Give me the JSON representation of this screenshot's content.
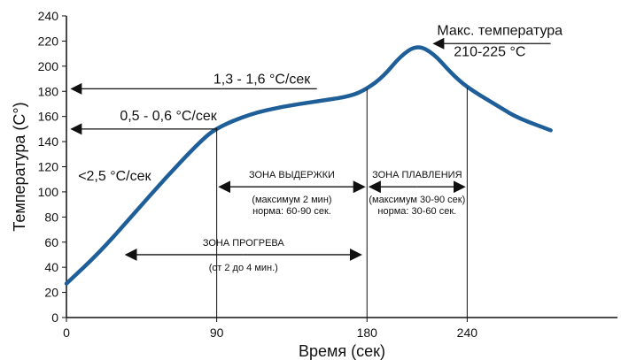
{
  "chart_data": {
    "type": "line",
    "title": "",
    "xlabel": "Время (сек)",
    "ylabel": "Температура (С°)",
    "xlim": [
      0,
      330
    ],
    "ylim": [
      0,
      240
    ],
    "x_ticks": [
      0,
      90,
      180,
      240
    ],
    "y_ticks": [
      0,
      20,
      40,
      60,
      80,
      100,
      120,
      140,
      160,
      180,
      200,
      220,
      240
    ],
    "grid": false,
    "series": [
      {
        "name": "",
        "color": "#1f5f99",
        "points": [
          [
            0,
            27
          ],
          [
            20,
            52
          ],
          [
            40,
            82
          ],
          [
            60,
            112
          ],
          [
            80,
            140
          ],
          [
            90,
            151
          ],
          [
            110,
            162
          ],
          [
            130,
            168
          ],
          [
            150,
            172
          ],
          [
            170,
            176
          ],
          [
            180,
            182
          ],
          [
            190,
            192
          ],
          [
            200,
            208
          ],
          [
            210,
            217
          ],
          [
            220,
            210
          ],
          [
            230,
            195
          ],
          [
            240,
            183
          ],
          [
            260,
            167
          ],
          [
            270,
            159
          ],
          [
            290,
            149
          ]
        ]
      }
    ],
    "verticals": [
      90,
      180,
      240
    ],
    "annotations": {
      "rate_1": {
        "text": "<2,5 °С/сек",
        "x": 7,
        "y": 109
      },
      "rate_2": {
        "text": "0,5 - 0,6 °С/сек",
        "x": 32,
        "y": 157
      },
      "rate_3": {
        "text": "1,3 - 1,6 °С/сек",
        "x": 88,
        "y": 186
      },
      "max_temp_label": {
        "text": "Макс. температура",
        "x": 222,
        "y": 225
      },
      "max_temp_range": {
        "text": "210-225 °С",
        "x": 232,
        "y": 208
      },
      "soak_zone": {
        "title": "ЗОНА ВЫДЕРЖКИ",
        "line1": "(максимум 2 мин)",
        "line2": "норма: 60-90 сек.",
        "x1": 90,
        "x2": 180,
        "y": 104
      },
      "reflow_zone": {
        "title": "ЗОНА ПЛАВЛЕНИЯ",
        "line1": "(максимум 30-90 сек)",
        "line2": "норма: 30-60 сек.",
        "x1": 180,
        "x2": 240,
        "y": 104
      },
      "preheat_zone": {
        "title": "ЗОНА ПРОГРЕВА",
        "line1": "(от 2 до 4 мин.)",
        "x1": 34,
        "x2": 178,
        "y": 50
      },
      "arrows": [
        {
          "x1": 150,
          "x2": 3,
          "y": 182,
          "name": "rate-arrow-180"
        },
        {
          "x1": 90,
          "x2": 3,
          "y": 150,
          "name": "rate-arrow-150"
        },
        {
          "x1": 290,
          "x2": 220,
          "y": 218,
          "name": "max-temp-arrow"
        }
      ]
    }
  }
}
